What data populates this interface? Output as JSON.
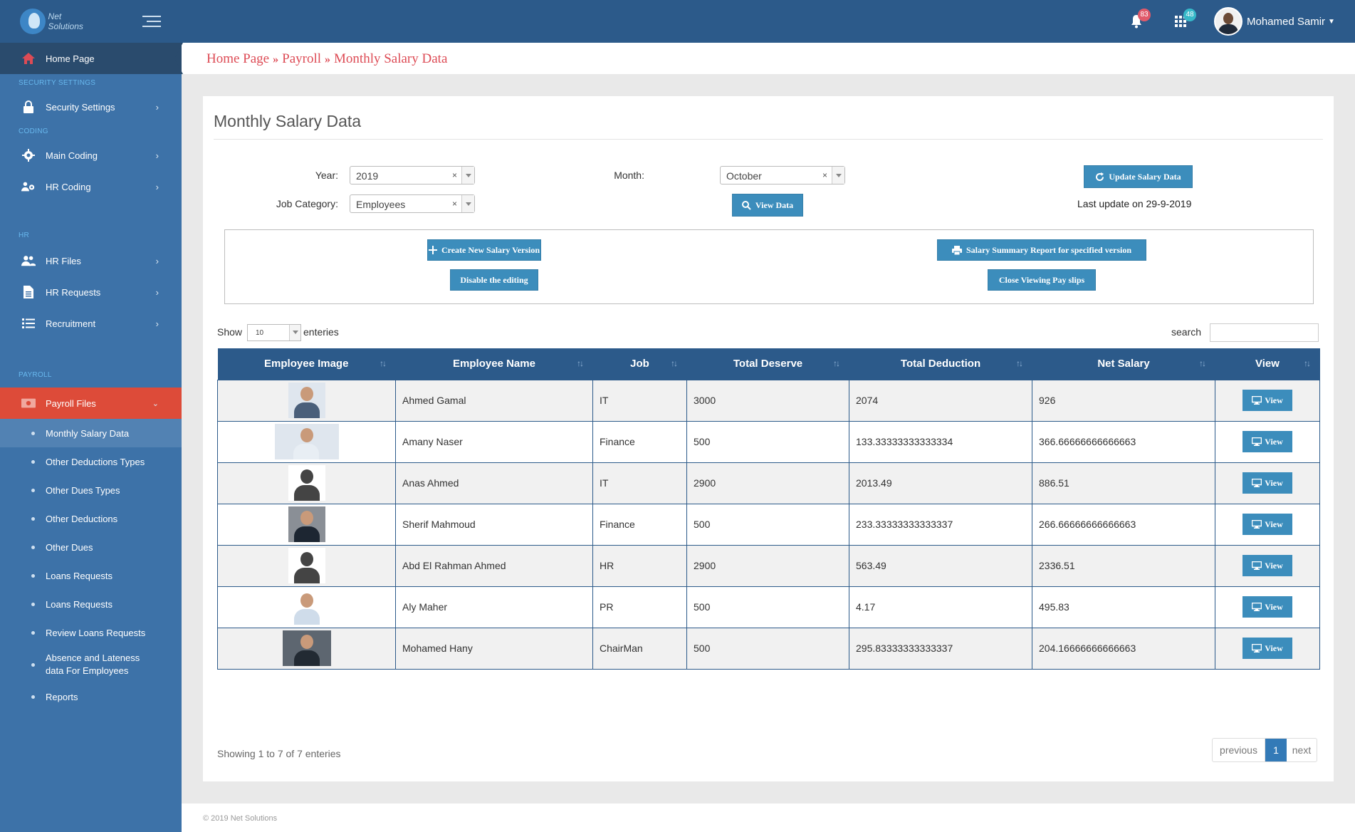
{
  "header": {
    "logo_text": "Net Solutions",
    "notifications_count": "83",
    "apps_count": "48",
    "user_name": "Mohamed Samir"
  },
  "sidebar": {
    "home": "Home Page",
    "sections": {
      "security": "SECURITY SETTINGS",
      "coding": "CODING",
      "hr": "HR",
      "payroll": "PAYROLL"
    },
    "items": {
      "security_settings": "Security Settings",
      "main_coding": "Main Coding",
      "hr_coding": "HR Coding",
      "hr_files": "HR Files",
      "hr_requests": "HR Requests",
      "recruitment": "Recruitment",
      "payroll_files": "Payroll Files"
    },
    "payroll_sub": [
      "Monthly Salary Data",
      "Other Deductions Types",
      "Other Dues Types",
      "Other Deductions",
      "Other Dues",
      "Loans Requests",
      "Loans Requests",
      "Review Loans Requests",
      "Absence and Lateness data For Employees",
      "Reports"
    ]
  },
  "breadcrumb": [
    "Home Page",
    "Payroll",
    "Monthly Salary Data"
  ],
  "breadcrumb_sep": "»",
  "page": {
    "title": "Monthly Salary Data",
    "year_label": "Year:",
    "year_value": "2019",
    "month_label": "Month:",
    "month_value": "October",
    "job_category_label": "Job Category:",
    "job_category_value": "Employees",
    "clear_symbol": "×",
    "view_data_btn": "View Data",
    "update_btn": "Update Salary Data",
    "last_update": "Last update on 29-9-2019",
    "create_version_btn": "Create New Salary Version",
    "disable_editing_btn": "Disable the editing",
    "summary_report_btn": "Salary Summary Report for specified version",
    "close_payslips_btn": "Close Viewing Pay slips",
    "show_label": "Show",
    "show_value": "10",
    "entries_label": "enteries",
    "search_label": "search",
    "search_value": ""
  },
  "table": {
    "columns": [
      "Employee Image",
      "Employee Name",
      "Job",
      "Total Deserve",
      "Total Deduction",
      "Net Salary",
      "View"
    ],
    "view_label": "View",
    "rows": [
      {
        "name": "Ahmed Gamal",
        "job": "IT",
        "deserve": "3000",
        "deduction": "2074",
        "net": "926"
      },
      {
        "name": "Amany Naser",
        "job": "Finance",
        "deserve": "500",
        "deduction": "133.33333333333334",
        "net": "366.66666666666663"
      },
      {
        "name": "Anas Ahmed",
        "job": "IT",
        "deserve": "2900",
        "deduction": "2013.49",
        "net": "886.51"
      },
      {
        "name": "Sherif Mahmoud",
        "job": "Finance",
        "deserve": "500",
        "deduction": "233.33333333333337",
        "net": "266.66666666666663"
      },
      {
        "name": "Abd El Rahman Ahmed",
        "job": "HR",
        "deserve": "2900",
        "deduction": "563.49",
        "net": "2336.51"
      },
      {
        "name": "Aly Maher",
        "job": "PR",
        "deserve": "500",
        "deduction": "4.17",
        "net": "495.83"
      },
      {
        "name": "Mohamed Hany",
        "job": "ChairMan",
        "deserve": "500",
        "deduction": "295.83333333333337",
        "net": "204.16666666666663"
      }
    ]
  },
  "pagination": {
    "showing": "Showing 1 to 7 of 7 enteries",
    "previous": "previous",
    "page": "1",
    "next": "next"
  },
  "footer": "© 2019 Net Solutions",
  "colors": {
    "header": "#2c5a8a",
    "sidebar": "#3d72a8",
    "active": "#dd4b39",
    "button": "#3c8dbc",
    "breadcrumb": "#dd4b55"
  }
}
